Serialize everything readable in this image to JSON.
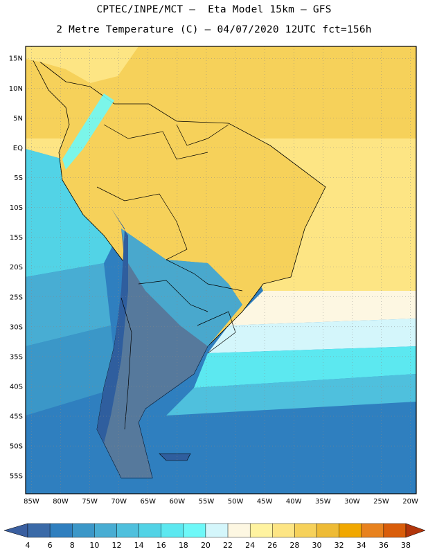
{
  "header": {
    "line1": "CPTEC/INPE/MCT –  Eta Model 15km – GFS",
    "line2": "2 Metre Temperature (C) – 04/07/2020 12UTC fct=156h"
  },
  "map": {
    "lat_labels": [
      "15N",
      "10N",
      "5N",
      "EQ",
      "5S",
      "10S",
      "15S",
      "20S",
      "25S",
      "30S",
      "35S",
      "40S",
      "45S",
      "50S",
      "55S"
    ],
    "lon_labels": [
      "85W",
      "80W",
      "75W",
      "70W",
      "65W",
      "60W",
      "55W",
      "50W",
      "45W",
      "40W",
      "35W",
      "30W",
      "25W",
      "20W"
    ],
    "lat_values": [
      15,
      10,
      5,
      0,
      -5,
      -10,
      -15,
      -20,
      -25,
      -30,
      -35,
      -40,
      -45,
      -50,
      -55
    ],
    "lon_values": [
      -85,
      -80,
      -75,
      -70,
      -65,
      -60,
      -55,
      -50,
      -45,
      -40,
      -35,
      -30,
      -25,
      -20
    ],
    "extent": {
      "lon_min": -86,
      "lon_max": -19,
      "lat_min": -58,
      "lat_max": 17
    },
    "gridlines": true
  },
  "colorbar": {
    "ticks": [
      "4",
      "6",
      "8",
      "10",
      "12",
      "14",
      "16",
      "18",
      "20",
      "22",
      "24",
      "26",
      "28",
      "30",
      "32",
      "34",
      "36",
      "38"
    ],
    "colors": [
      "#3a6aa8",
      "#2f7fbf",
      "#3b97c8",
      "#48add3",
      "#4fc0dd",
      "#52d3e6",
      "#5ce8f0",
      "#6ef8f8",
      "#d4f6fb",
      "#fdf7e2",
      "#fff3a0",
      "#fde584",
      "#f6d15a",
      "#eebb35",
      "#f1a800",
      "#e8821e",
      "#d95d0a",
      "#c43b02"
    ],
    "min_arrow_color": "#3a5fa0",
    "max_arrow_color": "#b2350b"
  }
}
